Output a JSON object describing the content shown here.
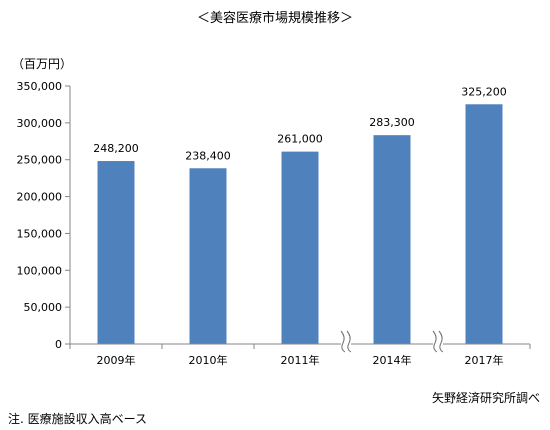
{
  "title": "＜美容医療市場規模推移＞",
  "unit": "（百万円）",
  "source": "矢野経済研究所調べ",
  "note": "注. 医療施設収入高ベース",
  "chart_data": {
    "type": "bar",
    "title": "＜美容医療市場規模推移＞",
    "ylabel": "（百万円）",
    "xlabel": "",
    "categories": [
      "2009年",
      "2010年",
      "2011年",
      "2014年",
      "2017年"
    ],
    "values": [
      248200,
      238400,
      261000,
      283300,
      325200
    ],
    "data_labels": [
      "248,200",
      "238,400",
      "261,000",
      "283,300",
      "325,200"
    ],
    "ylim": [
      0,
      350000
    ],
    "yticks": [
      0,
      50000,
      100000,
      150000,
      200000,
      250000,
      300000,
      350000
    ],
    "ytick_labels": [
      "0",
      "50,000",
      "100,000",
      "150,000",
      "200,000",
      "250,000",
      "300,000",
      "350,000"
    ],
    "axis_breaks_after": [
      "2011年",
      "2014年"
    ],
    "bar_color": "#4F81BD",
    "grid": false,
    "legend": "none"
  }
}
